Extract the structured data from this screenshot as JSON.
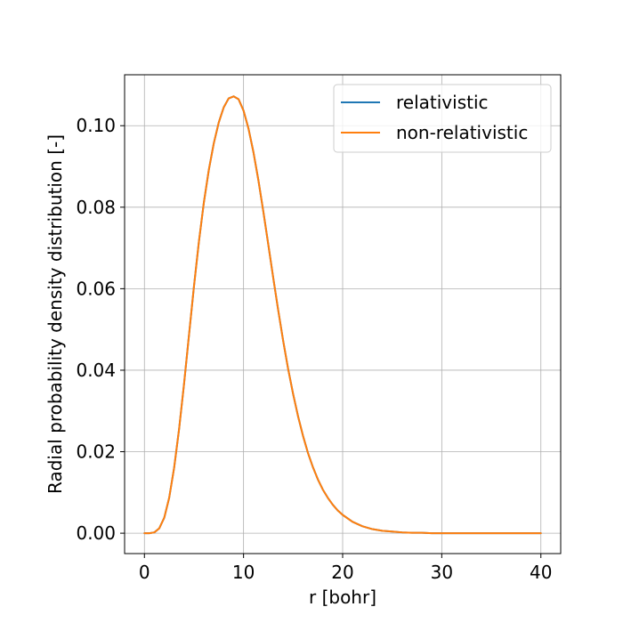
{
  "chart_data": {
    "type": "line",
    "title": "",
    "xlabel": "r [bohr]",
    "ylabel": "Radial probability density distribution [-]",
    "xlim": [
      -2,
      42
    ],
    "ylim": [
      -0.005,
      0.1125
    ],
    "xticks": [
      0,
      10,
      20,
      30,
      40
    ],
    "xtick_labels": [
      "0",
      "10",
      "20",
      "30",
      "40"
    ],
    "yticks": [
      0.0,
      0.02,
      0.04,
      0.06,
      0.08,
      0.1
    ],
    "ytick_labels": [
      "0.00",
      "0.02",
      "0.04",
      "0.06",
      "0.08",
      "0.10"
    ],
    "grid": true,
    "legend_position": "top-right",
    "series": [
      {
        "name": "relativistic",
        "color": "#1f77b4",
        "x": [
          0,
          0.5,
          1,
          1.5,
          2,
          2.5,
          3,
          3.5,
          4,
          4.5,
          5,
          5.5,
          6,
          6.5,
          7,
          7.5,
          8,
          8.5,
          9,
          9.5,
          10,
          10.5,
          11,
          11.5,
          12,
          12.5,
          13,
          13.5,
          14,
          14.5,
          15,
          15.5,
          16,
          16.5,
          17,
          17.5,
          18,
          18.5,
          19,
          19.5,
          20,
          21,
          22,
          23,
          24,
          25,
          26,
          27,
          28,
          29,
          30,
          32,
          34,
          36,
          38,
          40
        ],
        "y": [
          0.0,
          0.0,
          0.0002,
          0.0012,
          0.0038,
          0.0087,
          0.0161,
          0.0256,
          0.0367,
          0.0487,
          0.0606,
          0.0716,
          0.0812,
          0.0892,
          0.0957,
          0.1008,
          0.1045,
          0.1067,
          0.1072,
          0.1065,
          0.1037,
          0.0993,
          0.0935,
          0.0866,
          0.0789,
          0.0708,
          0.0626,
          0.0547,
          0.0472,
          0.0403,
          0.0342,
          0.0287,
          0.0239,
          0.0197,
          0.0162,
          0.0132,
          0.0107,
          0.0087,
          0.007,
          0.0056,
          0.0045,
          0.0028,
          0.0017,
          0.001,
          0.0006,
          0.0004,
          0.0002,
          0.0001,
          0.0001,
          0.0,
          0.0,
          0.0,
          0.0,
          0.0,
          0.0,
          0.0
        ]
      },
      {
        "name": "non-relativistic",
        "color": "#ff7f0e",
        "x": [
          0,
          0.5,
          1,
          1.5,
          2,
          2.5,
          3,
          3.5,
          4,
          4.5,
          5,
          5.5,
          6,
          6.5,
          7,
          7.5,
          8,
          8.5,
          9,
          9.5,
          10,
          10.5,
          11,
          11.5,
          12,
          12.5,
          13,
          13.5,
          14,
          14.5,
          15,
          15.5,
          16,
          16.5,
          17,
          17.5,
          18,
          18.5,
          19,
          19.5,
          20,
          21,
          22,
          23,
          24,
          25,
          26,
          27,
          28,
          29,
          30,
          32,
          34,
          36,
          38,
          40
        ],
        "y": [
          0.0,
          0.0,
          0.0002,
          0.0012,
          0.0038,
          0.0087,
          0.0161,
          0.0256,
          0.0367,
          0.0487,
          0.0606,
          0.0716,
          0.0812,
          0.0892,
          0.0957,
          0.1008,
          0.1045,
          0.1067,
          0.1072,
          0.1065,
          0.1037,
          0.0993,
          0.0935,
          0.0866,
          0.0789,
          0.0708,
          0.0626,
          0.0547,
          0.0472,
          0.0403,
          0.0342,
          0.0287,
          0.0239,
          0.0197,
          0.0162,
          0.0132,
          0.0107,
          0.0087,
          0.007,
          0.0056,
          0.0045,
          0.0028,
          0.0017,
          0.001,
          0.0006,
          0.0004,
          0.0002,
          0.0001,
          0.0001,
          0.0,
          0.0,
          0.0,
          0.0,
          0.0,
          0.0,
          0.0
        ]
      }
    ]
  }
}
